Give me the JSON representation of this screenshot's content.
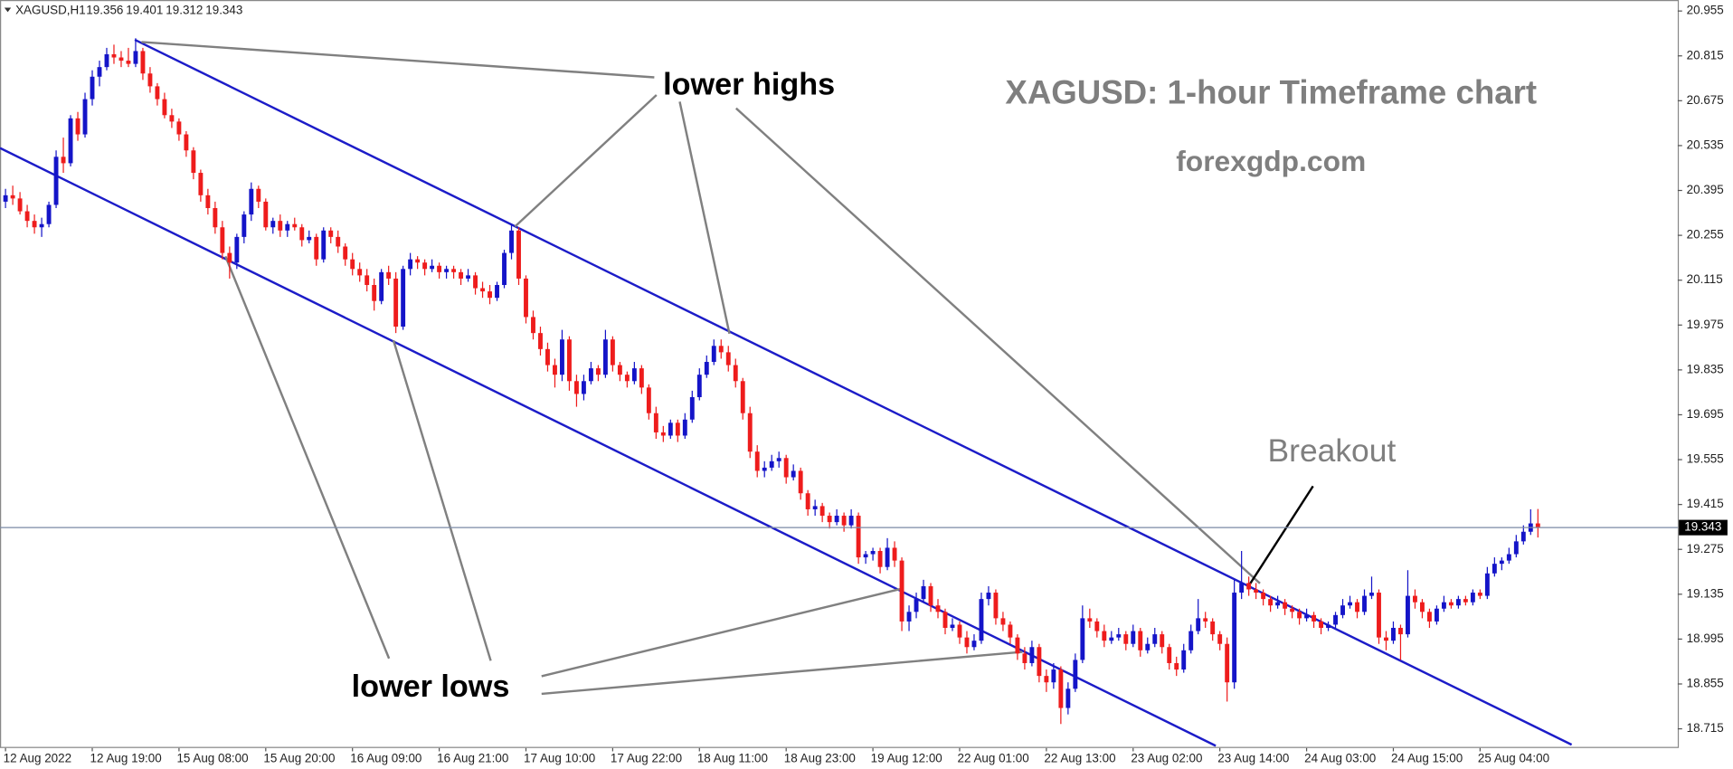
{
  "chart_data": {
    "type": "candlestick",
    "symbol": "XAGUSD,H1",
    "header_ohlc": [
      19.356,
      19.401,
      19.312,
      19.343
    ],
    "annotations": {
      "lower_highs": "lower highs",
      "lower_lows": "lower lows",
      "breakout": "Breakout",
      "title": "XAGUSD: 1-hour Timeframe chart",
      "site": "forexgdp.com"
    },
    "colors": {
      "up": "#1414c8",
      "down": "#ee1c1c"
    },
    "last_price": 19.343,
    "ylim": [
      18.662,
      20.979
    ],
    "yticks": [
      20.955,
      20.815,
      20.675,
      20.535,
      20.395,
      20.255,
      20.115,
      19.975,
      19.835,
      19.695,
      19.555,
      19.415,
      19.275,
      19.135,
      18.995,
      18.855,
      18.715
    ],
    "categories": [
      "12 Aug 2022",
      null,
      null,
      null,
      null,
      null,
      null,
      null,
      null,
      null,
      null,
      null,
      "12 Aug 19:00",
      null,
      null,
      null,
      null,
      null,
      null,
      null,
      null,
      null,
      null,
      null,
      "15 Aug 08:00",
      null,
      null,
      null,
      null,
      null,
      null,
      null,
      null,
      null,
      null,
      null,
      "15 Aug 20:00",
      null,
      null,
      null,
      null,
      null,
      null,
      null,
      null,
      null,
      null,
      null,
      "16 Aug 09:00",
      null,
      null,
      null,
      null,
      null,
      null,
      null,
      null,
      null,
      null,
      null,
      "16 Aug 21:00",
      null,
      null,
      null,
      null,
      null,
      null,
      null,
      null,
      null,
      null,
      null,
      "17 Aug 10:00",
      null,
      null,
      null,
      null,
      null,
      null,
      null,
      null,
      null,
      null,
      null,
      "17 Aug 22:00",
      null,
      null,
      null,
      null,
      null,
      null,
      null,
      null,
      null,
      null,
      null,
      "18 Aug 11:00",
      null,
      null,
      null,
      null,
      null,
      null,
      null,
      null,
      null,
      null,
      null,
      "18 Aug 23:00",
      null,
      null,
      null,
      null,
      null,
      null,
      null,
      null,
      null,
      null,
      null,
      "19 Aug 12:00",
      null,
      null,
      null,
      null,
      null,
      null,
      null,
      null,
      null,
      null,
      null,
      "22 Aug 01:00",
      null,
      null,
      null,
      null,
      null,
      null,
      null,
      null,
      null,
      null,
      null,
      "22 Aug 13:00",
      null,
      null,
      null,
      null,
      null,
      null,
      null,
      null,
      null,
      null,
      null,
      "23 Aug 02:00",
      null,
      null,
      null,
      null,
      null,
      null,
      null,
      null,
      null,
      null,
      null,
      "23 Aug 14:00",
      null,
      null,
      null,
      null,
      null,
      null,
      null,
      null,
      null,
      null,
      null,
      "24 Aug 03:00",
      null,
      null,
      null,
      null,
      null,
      null,
      null,
      null,
      null,
      null,
      null,
      "24 Aug 15:00",
      null,
      null,
      null,
      null,
      null,
      null,
      null,
      null,
      null,
      null,
      null,
      "25 Aug 04:00",
      null,
      null,
      null,
      null,
      null,
      null,
      null,
      null
    ],
    "candles": [
      [
        20.36,
        20.4,
        20.34,
        20.38
      ],
      [
        20.38,
        20.41,
        20.35,
        20.37
      ],
      [
        20.37,
        20.39,
        20.32,
        20.33
      ],
      [
        20.33,
        20.35,
        20.28,
        20.3
      ],
      [
        20.3,
        20.32,
        20.26,
        20.28
      ],
      [
        20.28,
        20.31,
        20.25,
        20.29
      ],
      [
        20.29,
        20.36,
        20.28,
        20.35
      ],
      [
        20.35,
        20.52,
        20.34,
        20.5
      ],
      [
        20.5,
        20.56,
        20.45,
        20.48
      ],
      [
        20.48,
        20.63,
        20.47,
        20.62
      ],
      [
        20.62,
        20.64,
        20.55,
        20.57
      ],
      [
        20.57,
        20.7,
        20.56,
        20.68
      ],
      [
        20.68,
        20.77,
        20.66,
        20.75
      ],
      [
        20.75,
        20.8,
        20.72,
        20.78
      ],
      [
        20.78,
        20.84,
        20.77,
        20.82
      ],
      [
        20.82,
        20.85,
        20.79,
        20.81
      ],
      [
        20.81,
        20.83,
        20.78,
        20.8
      ],
      [
        20.8,
        20.84,
        20.78,
        20.79
      ],
      [
        20.79,
        20.87,
        20.78,
        20.83
      ],
      [
        20.83,
        20.84,
        20.74,
        20.76
      ],
      [
        20.76,
        20.78,
        20.7,
        20.72
      ],
      [
        20.72,
        20.73,
        20.66,
        20.68
      ],
      [
        20.68,
        20.7,
        20.62,
        20.63
      ],
      [
        20.63,
        20.65,
        20.59,
        20.61
      ],
      [
        20.61,
        20.62,
        20.55,
        20.57
      ],
      [
        20.57,
        20.58,
        20.5,
        20.52
      ],
      [
        20.52,
        20.53,
        20.43,
        20.45
      ],
      [
        20.45,
        20.46,
        20.36,
        20.38
      ],
      [
        20.38,
        20.4,
        20.32,
        20.34
      ],
      [
        20.34,
        20.36,
        20.26,
        20.28
      ],
      [
        20.28,
        20.3,
        20.18,
        20.2
      ],
      [
        20.2,
        20.22,
        20.12,
        20.17
      ],
      [
        20.17,
        20.26,
        20.15,
        20.25
      ],
      [
        20.25,
        20.33,
        20.23,
        20.32
      ],
      [
        20.32,
        20.42,
        20.3,
        20.4
      ],
      [
        20.4,
        20.41,
        20.34,
        20.36
      ],
      [
        20.36,
        20.37,
        20.27,
        20.28
      ],
      [
        20.28,
        20.31,
        20.26,
        20.3
      ],
      [
        20.3,
        20.32,
        20.25,
        20.27
      ],
      [
        20.27,
        20.3,
        20.25,
        20.29
      ],
      [
        20.29,
        20.31,
        20.27,
        20.28
      ],
      [
        20.28,
        20.29,
        20.22,
        20.24
      ],
      [
        20.24,
        20.27,
        20.23,
        20.25
      ],
      [
        20.25,
        20.26,
        20.16,
        20.18
      ],
      [
        20.18,
        20.28,
        20.17,
        20.27
      ],
      [
        20.27,
        20.28,
        20.23,
        20.25
      ],
      [
        20.25,
        20.27,
        20.2,
        20.22
      ],
      [
        20.22,
        20.23,
        20.16,
        20.18
      ],
      [
        20.18,
        20.2,
        20.13,
        20.15
      ],
      [
        20.15,
        20.17,
        20.11,
        20.13
      ],
      [
        20.13,
        20.15,
        20.08,
        20.1
      ],
      [
        20.1,
        20.12,
        20.02,
        20.05
      ],
      [
        20.05,
        20.15,
        20.04,
        20.14
      ],
      [
        20.14,
        20.16,
        20.1,
        20.12
      ],
      [
        20.12,
        20.14,
        19.95,
        19.97
      ],
      [
        19.97,
        20.16,
        19.96,
        20.15
      ],
      [
        20.15,
        20.2,
        20.13,
        20.18
      ],
      [
        20.18,
        20.19,
        20.15,
        20.17
      ],
      [
        20.17,
        20.18,
        20.13,
        20.15
      ],
      [
        20.15,
        20.18,
        20.14,
        20.16
      ],
      [
        20.16,
        20.17,
        20.12,
        20.14
      ],
      [
        20.14,
        20.16,
        20.12,
        20.15
      ],
      [
        20.15,
        20.16,
        20.12,
        20.14
      ],
      [
        20.14,
        20.15,
        20.1,
        20.12
      ],
      [
        20.12,
        20.15,
        20.11,
        20.13
      ],
      [
        20.13,
        20.14,
        20.07,
        20.09
      ],
      [
        20.09,
        20.11,
        20.06,
        20.08
      ],
      [
        20.08,
        20.1,
        20.04,
        20.06
      ],
      [
        20.06,
        20.11,
        20.05,
        20.1
      ],
      [
        20.1,
        20.21,
        20.09,
        20.2
      ],
      [
        20.2,
        20.29,
        20.18,
        20.27
      ],
      [
        20.27,
        20.28,
        20.1,
        20.12
      ],
      [
        20.12,
        20.13,
        19.98,
        20.0
      ],
      [
        20.0,
        20.02,
        19.93,
        19.95
      ],
      [
        19.95,
        19.97,
        19.88,
        19.9
      ],
      [
        19.9,
        19.92,
        19.83,
        19.85
      ],
      [
        19.85,
        19.87,
        19.78,
        19.82
      ],
      [
        19.82,
        19.96,
        19.8,
        19.93
      ],
      [
        19.93,
        19.94,
        19.77,
        19.8
      ],
      [
        19.8,
        19.82,
        19.72,
        19.76
      ],
      [
        19.76,
        19.82,
        19.74,
        19.8
      ],
      [
        19.8,
        19.86,
        19.79,
        19.84
      ],
      [
        19.84,
        19.85,
        19.8,
        19.82
      ],
      [
        19.82,
        19.96,
        19.81,
        19.93
      ],
      [
        19.93,
        19.94,
        19.83,
        19.85
      ],
      [
        19.85,
        19.86,
        19.8,
        19.82
      ],
      [
        19.82,
        19.83,
        19.78,
        19.8
      ],
      [
        19.8,
        19.86,
        19.79,
        19.84
      ],
      [
        19.84,
        19.85,
        19.76,
        19.78
      ],
      [
        19.78,
        19.79,
        19.68,
        19.7
      ],
      [
        19.7,
        19.72,
        19.62,
        19.64
      ],
      [
        19.64,
        19.66,
        19.61,
        19.63
      ],
      [
        19.63,
        19.68,
        19.62,
        19.67
      ],
      [
        19.67,
        19.68,
        19.61,
        19.63
      ],
      [
        19.63,
        19.7,
        19.62,
        19.68
      ],
      [
        19.68,
        19.77,
        19.67,
        19.75
      ],
      [
        19.75,
        19.84,
        19.74,
        19.82
      ],
      [
        19.82,
        19.88,
        19.81,
        19.86
      ],
      [
        19.86,
        19.93,
        19.85,
        19.91
      ],
      [
        19.91,
        19.93,
        19.87,
        19.89
      ],
      [
        19.89,
        19.91,
        19.83,
        19.85
      ],
      [
        19.85,
        19.87,
        19.78,
        19.8
      ],
      [
        19.8,
        19.81,
        19.68,
        19.7
      ],
      [
        19.7,
        19.72,
        19.56,
        19.58
      ],
      [
        19.58,
        19.6,
        19.5,
        19.52
      ],
      [
        19.52,
        19.55,
        19.5,
        19.53
      ],
      [
        19.53,
        19.57,
        19.52,
        19.55
      ],
      [
        19.55,
        19.58,
        19.53,
        19.56
      ],
      [
        19.56,
        19.57,
        19.48,
        19.5
      ],
      [
        19.5,
        19.54,
        19.49,
        19.52
      ],
      [
        19.52,
        19.53,
        19.43,
        19.45
      ],
      [
        19.45,
        19.46,
        19.38,
        19.4
      ],
      [
        19.4,
        19.43,
        19.38,
        19.41
      ],
      [
        19.41,
        19.42,
        19.36,
        19.38
      ],
      [
        19.38,
        19.39,
        19.34,
        19.36
      ],
      [
        19.36,
        19.4,
        19.35,
        19.38
      ],
      [
        19.38,
        19.39,
        19.33,
        19.35
      ],
      [
        19.35,
        19.4,
        19.34,
        19.38
      ],
      [
        19.38,
        19.39,
        19.23,
        19.25
      ],
      [
        19.25,
        19.27,
        19.23,
        19.26
      ],
      [
        19.26,
        19.28,
        19.24,
        19.27
      ],
      [
        19.27,
        19.28,
        19.2,
        19.22
      ],
      [
        19.22,
        19.31,
        19.21,
        19.28
      ],
      [
        19.28,
        19.3,
        19.22,
        19.24
      ],
      [
        19.24,
        19.25,
        19.02,
        19.05
      ],
      [
        19.05,
        19.1,
        19.02,
        19.08
      ],
      [
        19.08,
        19.14,
        19.06,
        19.12
      ],
      [
        19.12,
        19.18,
        19.11,
        19.16
      ],
      [
        19.16,
        19.17,
        19.08,
        19.1
      ],
      [
        19.1,
        19.12,
        19.06,
        19.08
      ],
      [
        19.08,
        19.09,
        19.01,
        19.03
      ],
      [
        19.03,
        19.06,
        19.02,
        19.04
      ],
      [
        19.04,
        19.05,
        18.98,
        19.0
      ],
      [
        19.0,
        19.02,
        18.95,
        18.97
      ],
      [
        18.97,
        19.01,
        18.96,
        18.99
      ],
      [
        18.99,
        19.14,
        18.98,
        19.12
      ],
      [
        19.12,
        19.16,
        19.1,
        19.14
      ],
      [
        19.14,
        19.15,
        19.04,
        19.06
      ],
      [
        19.06,
        19.08,
        19.02,
        19.04
      ],
      [
        19.04,
        19.05,
        18.98,
        19.0
      ],
      [
        19.0,
        19.01,
        18.93,
        18.95
      ],
      [
        18.95,
        18.97,
        18.9,
        18.92
      ],
      [
        18.92,
        18.99,
        18.91,
        18.97
      ],
      [
        18.97,
        18.98,
        18.86,
        18.88
      ],
      [
        18.88,
        18.9,
        18.83,
        18.86
      ],
      [
        18.86,
        18.92,
        18.84,
        18.9
      ],
      [
        18.9,
        18.91,
        18.73,
        18.78
      ],
      [
        18.78,
        18.86,
        18.76,
        18.84
      ],
      [
        18.84,
        18.95,
        18.83,
        18.93
      ],
      [
        18.93,
        19.1,
        18.92,
        19.06
      ],
      [
        19.06,
        19.09,
        19.03,
        19.05
      ],
      [
        19.05,
        19.06,
        19.0,
        19.02
      ],
      [
        19.02,
        19.04,
        18.97,
        18.99
      ],
      [
        18.99,
        19.02,
        18.98,
        19.0
      ],
      [
        19.0,
        19.03,
        18.99,
        19.01
      ],
      [
        19.01,
        19.02,
        18.96,
        18.98
      ],
      [
        18.98,
        19.04,
        18.97,
        19.02
      ],
      [
        19.02,
        19.03,
        18.94,
        18.96
      ],
      [
        18.96,
        19.0,
        18.95,
        18.98
      ],
      [
        18.98,
        19.03,
        18.97,
        19.01
      ],
      [
        19.01,
        19.02,
        18.95,
        18.97
      ],
      [
        18.97,
        18.98,
        18.9,
        18.92
      ],
      [
        18.92,
        18.94,
        18.88,
        18.9
      ],
      [
        18.9,
        18.98,
        18.89,
        18.96
      ],
      [
        18.96,
        19.04,
        18.95,
        19.02
      ],
      [
        19.02,
        19.12,
        19.01,
        19.06
      ],
      [
        19.06,
        19.08,
        19.03,
        19.05
      ],
      [
        19.05,
        19.06,
        18.99,
        19.01
      ],
      [
        19.01,
        19.02,
        18.96,
        18.98
      ],
      [
        18.98,
        19.0,
        18.8,
        18.86
      ],
      [
        18.86,
        19.18,
        18.84,
        19.14
      ],
      [
        19.14,
        19.27,
        19.12,
        19.17
      ],
      [
        19.17,
        19.19,
        19.13,
        19.15
      ],
      [
        19.15,
        19.17,
        19.12,
        19.14
      ],
      [
        19.14,
        19.15,
        19.1,
        19.12
      ],
      [
        19.12,
        19.13,
        19.08,
        19.1
      ],
      [
        19.1,
        19.13,
        19.09,
        19.11
      ],
      [
        19.11,
        19.12,
        19.07,
        19.09
      ],
      [
        19.09,
        19.1,
        19.06,
        19.08
      ],
      [
        19.08,
        19.09,
        19.04,
        19.06
      ],
      [
        19.06,
        19.09,
        19.05,
        19.07
      ],
      [
        19.07,
        19.08,
        19.03,
        19.05
      ],
      [
        19.05,
        19.06,
        19.01,
        19.03
      ],
      [
        19.03,
        19.05,
        19.02,
        19.04
      ],
      [
        19.04,
        19.08,
        19.03,
        19.07
      ],
      [
        19.07,
        19.12,
        19.06,
        19.1
      ],
      [
        19.1,
        19.13,
        19.09,
        19.11
      ],
      [
        19.11,
        19.12,
        19.06,
        19.08
      ],
      [
        19.08,
        19.15,
        19.07,
        19.13
      ],
      [
        19.13,
        19.19,
        19.12,
        19.14
      ],
      [
        19.14,
        19.15,
        18.98,
        19.0
      ],
      [
        19.0,
        19.02,
        18.96,
        18.99
      ],
      [
        18.99,
        19.05,
        18.98,
        19.03
      ],
      [
        19.03,
        19.04,
        18.93,
        19.01
      ],
      [
        19.01,
        19.21,
        19.0,
        19.13
      ],
      [
        19.13,
        19.15,
        19.09,
        19.11
      ],
      [
        19.11,
        19.12,
        19.06,
        19.08
      ],
      [
        19.08,
        19.09,
        19.03,
        19.05
      ],
      [
        19.05,
        19.1,
        19.04,
        19.09
      ],
      [
        19.09,
        19.13,
        19.08,
        19.11
      ],
      [
        19.11,
        19.12,
        19.09,
        19.1
      ],
      [
        19.1,
        19.13,
        19.09,
        19.12
      ],
      [
        19.12,
        19.13,
        19.1,
        19.11
      ],
      [
        19.11,
        19.15,
        19.1,
        19.14
      ],
      [
        19.14,
        19.15,
        19.12,
        19.13
      ],
      [
        19.13,
        19.22,
        19.12,
        19.2
      ],
      [
        19.2,
        19.25,
        19.19,
        19.23
      ],
      [
        19.23,
        19.25,
        19.21,
        19.24
      ],
      [
        19.24,
        19.28,
        19.23,
        19.26
      ],
      [
        19.26,
        19.32,
        19.25,
        19.3
      ],
      [
        19.3,
        19.35,
        19.29,
        19.33
      ],
      [
        19.33,
        19.4,
        19.32,
        19.356
      ],
      [
        19.356,
        19.401,
        19.312,
        19.343
      ]
    ]
  }
}
